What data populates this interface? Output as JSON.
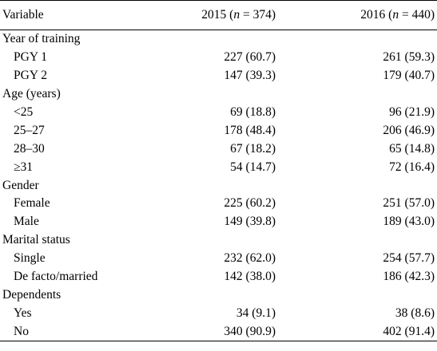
{
  "header": {
    "variable": "Variable",
    "col_2015_year": "2015 (",
    "col_2015_n": "n",
    "col_2015_rest": " = 374)",
    "col_2016_year": "2016 (",
    "col_2016_n": "n",
    "col_2016_rest": " = 440)"
  },
  "rows": [
    {
      "label": "Year of training",
      "type": "category",
      "v2015": "",
      "v2016": ""
    },
    {
      "label": "PGY 1",
      "type": "sub",
      "v2015": "227 (60.7)",
      "v2016": "261 (59.3)"
    },
    {
      "label": "PGY 2",
      "type": "sub",
      "v2015": "147 (39.3)",
      "v2016": "179 (40.7)"
    },
    {
      "label": "Age (years)",
      "type": "category",
      "v2015": "",
      "v2016": ""
    },
    {
      "label": "<25",
      "type": "sub",
      "v2015": "69 (18.8)",
      "v2016": "96 (21.9)"
    },
    {
      "label": "25–27",
      "type": "sub",
      "v2015": "178 (48.4)",
      "v2016": "206 (46.9)"
    },
    {
      "label": "28–30",
      "type": "sub",
      "v2015": "67 (18.2)",
      "v2016": "65 (14.8)"
    },
    {
      "label": "≥31",
      "type": "sub",
      "v2015": "54 (14.7)",
      "v2016": "72 (16.4)"
    },
    {
      "label": "Gender",
      "type": "category",
      "v2015": "",
      "v2016": ""
    },
    {
      "label": "Female",
      "type": "sub",
      "v2015": "225 (60.2)",
      "v2016": "251 (57.0)"
    },
    {
      "label": "Male",
      "type": "sub",
      "v2015": "149 (39.8)",
      "v2016": "189 (43.0)"
    },
    {
      "label": "Marital status",
      "type": "category",
      "v2015": "",
      "v2016": ""
    },
    {
      "label": "Single",
      "type": "sub",
      "v2015": "232 (62.0)",
      "v2016": "254 (57.7)"
    },
    {
      "label": "De facto/married",
      "type": "sub",
      "v2015": "142 (38.0)",
      "v2016": "186 (42.3)"
    },
    {
      "label": "Dependents",
      "type": "category",
      "v2015": "",
      "v2016": ""
    },
    {
      "label": "Yes",
      "type": "sub",
      "v2015": "34 (9.1)",
      "v2016": "38 (8.6)"
    },
    {
      "label": "No",
      "type": "sub",
      "v2015": "340 (90.9)",
      "v2016": "402 (91.4)"
    }
  ]
}
